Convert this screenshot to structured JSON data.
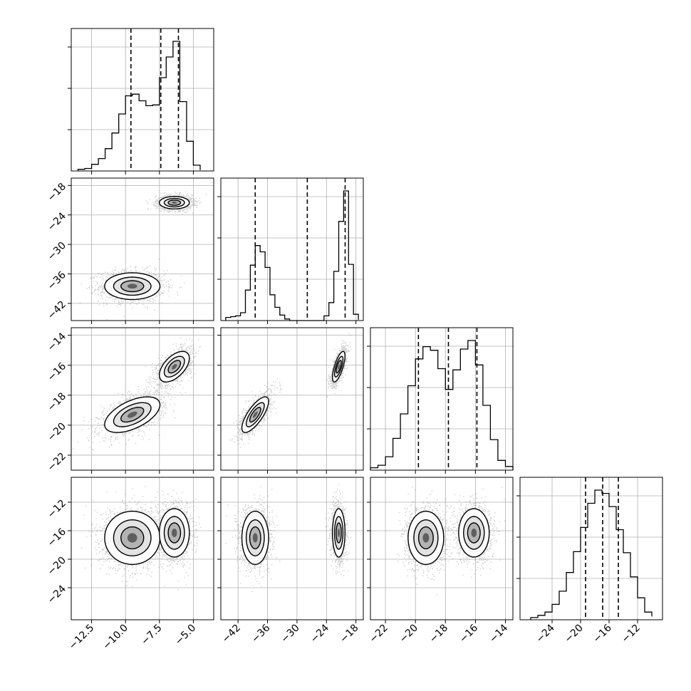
{
  "chart_data": {
    "type": "corner",
    "title": "",
    "parameters": [
      {
        "name": "",
        "range": [
          -14.0,
          -3.5
        ],
        "ticks": [
          -12.5,
          -10.0,
          -7.5,
          -5.0
        ],
        "tick_labels": [
          "−12.5",
          "−10.0",
          "−7.5",
          "−5.0"
        ],
        "quantiles": [
          -9.6,
          -7.4,
          -6.1
        ],
        "histogram": {
          "edges": [
            -13.5,
            -13.0,
            -12.5,
            -12.0,
            -11.5,
            -11.0,
            -10.5,
            -10.0,
            -9.5,
            -9.0,
            -8.5,
            -8.0,
            -7.5,
            -7.0,
            -6.5,
            -6.0,
            -5.5,
            -5.0,
            -4.5
          ],
          "counts": [
            2,
            3,
            8,
            15,
            27,
            46,
            69,
            91,
            93,
            85,
            79,
            80,
            113,
            138,
            157,
            84,
            36,
            7,
            1
          ]
        }
      },
      {
        "name": "",
        "range": [
          -45.5,
          -16.5
        ],
        "ticks": [
          -42,
          -36,
          -30,
          -24,
          -18
        ],
        "tick_labels": [
          "−42",
          "−36",
          "−30",
          "−24",
          "−18"
        ],
        "quantiles": [
          -38.5,
          -27.9,
          -20.2
        ],
        "histogram": {
          "edges": [
            -44.5,
            -43.5,
            -42.5,
            -41.5,
            -40.5,
            -39.5,
            -38.5,
            -37.5,
            -36.5,
            -35.5,
            -34.5,
            -33.5,
            -32.5,
            -31.5,
            -30.5,
            -29.5,
            -28.5,
            -27.5,
            -26.5,
            -25.5,
            -24.5,
            -23.5,
            -22.5,
            -21.5,
            -20.5,
            -19.5,
            -18.5,
            -17.5
          ],
          "counts": [
            4,
            5,
            6,
            10,
            39,
            71,
            96,
            88,
            68,
            33,
            17,
            7,
            2,
            0,
            0,
            0,
            0,
            0,
            0,
            0,
            6,
            23,
            63,
            127,
            166,
            72,
            8,
            1
          ]
        }
      },
      {
        "name": "",
        "range": [
          -23.0,
          -13.5
        ],
        "ticks": [
          -22,
          -20,
          -18,
          -16,
          -14
        ],
        "tick_labels": [
          "−22",
          "−20",
          "−18",
          "−16",
          "−14"
        ],
        "quantiles": [
          -19.8,
          -17.8,
          -15.9
        ],
        "histogram": {
          "edges": [
            -23.0,
            -22.5,
            -22.0,
            -21.5,
            -21.0,
            -20.5,
            -20.0,
            -19.5,
            -19.0,
            -18.5,
            -18.0,
            -17.5,
            -17.0,
            -16.5,
            -16.0,
            -15.5,
            -15.0,
            -14.5,
            -14.0,
            -13.5
          ],
          "counts": [
            2,
            4,
            11,
            26,
            46,
            69,
            91,
            101,
            98,
            83,
            66,
            82,
            99,
            106,
            86,
            53,
            25,
            8,
            3
          ]
        }
      },
      {
        "name": "",
        "range": [
          -28.5,
          -8.5
        ],
        "ticks": [
          -24,
          -20,
          -16,
          -12
        ],
        "tick_labels": [
          "−24",
          "−20",
          "−16",
          "−12"
        ],
        "quantiles": [
          -19.3,
          -16.9,
          -14.7
        ],
        "histogram": {
          "edges": [
            -27.0,
            -26.0,
            -25.0,
            -24.0,
            -23.0,
            -22.0,
            -21.0,
            -20.0,
            -19.0,
            -18.0,
            -17.0,
            -16.0,
            -15.0,
            -14.0,
            -13.0,
            -12.0,
            -11.0,
            -10.0
          ],
          "counts": [
            2,
            4,
            7,
            14,
            26,
            43,
            62,
            84,
            106,
            118,
            115,
            103,
            82,
            61,
            39,
            20,
            7,
            3
          ]
        }
      }
    ],
    "modes": [
      {
        "center": [
          -9.5,
          -38.5,
          -19.3,
          -17.0
        ],
        "sd": [
          1.2,
          1.6,
          0.7,
          2.2
        ],
        "corr": {
          "0-2": 0.55,
          "1-2": 0.75
        }
      },
      {
        "center": [
          -6.4,
          -21.5,
          -16.1,
          -16.3
        ],
        "sd": [
          0.65,
          0.75,
          0.6,
          2.0
        ],
        "corr": {
          "0-2": 0.55,
          "1-2": 0.7
        }
      }
    ],
    "pair_panels": [
      {
        "row": 1,
        "col": 0
      },
      {
        "row": 2,
        "col": 0
      },
      {
        "row": 2,
        "col": 1
      },
      {
        "row": 3,
        "col": 0
      },
      {
        "row": 3,
        "col": 1
      },
      {
        "row": 3,
        "col": 2
      }
    ],
    "grid": true,
    "colors": {
      "points": "#7f7f7f",
      "lines": "#000000",
      "grid": "#b0b0b0",
      "density_dark": "#000000",
      "density_light": "#d9d9d9"
    }
  }
}
